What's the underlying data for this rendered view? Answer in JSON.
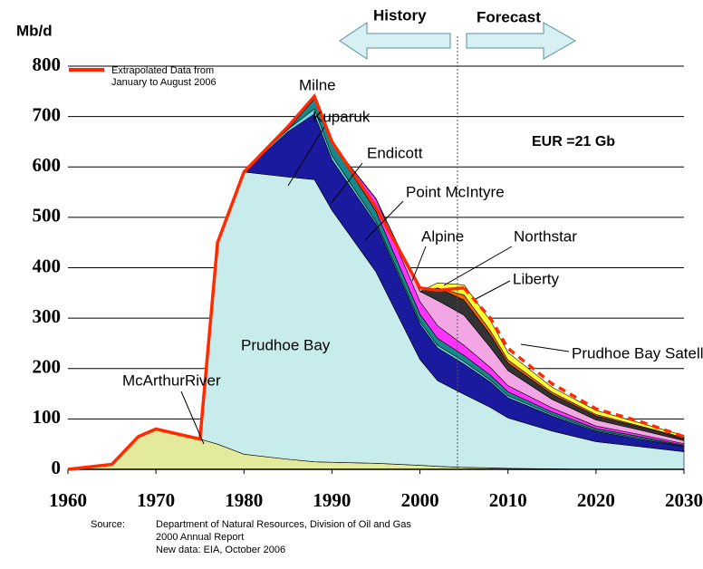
{
  "chart_data": {
    "type": "area",
    "stacked": true,
    "y_unit": "Mb/d",
    "history_label": "History",
    "forecast_label": "Forecast",
    "annotation": "EUR =21 Gb",
    "source": [
      "Source:",
      "Department of Natural Resources, Division of Oil and Gas",
      "2000 Annual Report",
      "New data: EIA, October 2006"
    ],
    "x": [
      1960,
      1965,
      1968,
      1970,
      1975,
      1977,
      1980,
      1985,
      1988,
      1990,
      1995,
      2000,
      2002,
      2005,
      2008,
      2010,
      2015,
      2020,
      2025,
      2030
    ],
    "series": [
      {
        "name": "McArthurRiver",
        "color": "#e3ea9c",
        "values": [
          0,
          10,
          65,
          80,
          60,
          50,
          30,
          20,
          15,
          14,
          12,
          8,
          6,
          4,
          3,
          2,
          1,
          0,
          0,
          0
        ]
      },
      {
        "name": "Prudhoe Bay",
        "color": "#c8ecec",
        "values": [
          0,
          0,
          0,
          0,
          0,
          400,
          560,
          560,
          560,
          500,
          380,
          210,
          170,
          145,
          120,
          100,
          75,
          55,
          45,
          35
        ]
      },
      {
        "name": "Kuparuk",
        "color": "#1a1a9e",
        "values": [
          0,
          0,
          0,
          0,
          0,
          0,
          0,
          90,
          130,
          100,
          95,
          70,
          65,
          60,
          50,
          40,
          30,
          20,
          15,
          10
        ]
      },
      {
        "name": "Milne",
        "color": "#6ad6ea",
        "values": [
          0,
          0,
          0,
          0,
          0,
          0,
          0,
          5,
          10,
          8,
          5,
          5,
          5,
          5,
          4,
          4,
          3,
          2,
          2,
          1
        ]
      },
      {
        "name": "Endicott",
        "color": "#17898a",
        "values": [
          0,
          0,
          0,
          0,
          0,
          0,
          0,
          0,
          20,
          25,
          20,
          15,
          14,
          12,
          10,
          8,
          5,
          4,
          3,
          2
        ]
      },
      {
        "name": "Point McIntyre",
        "color": "#ff33ff",
        "values": [
          0,
          0,
          0,
          0,
          0,
          0,
          0,
          0,
          0,
          0,
          25,
          25,
          25,
          20,
          15,
          12,
          8,
          5,
          4,
          3
        ]
      },
      {
        "name": "Alpine",
        "color": "#f2a6e4",
        "values": [
          0,
          0,
          0,
          0,
          0,
          0,
          0,
          0,
          0,
          0,
          0,
          20,
          50,
          60,
          40,
          30,
          17,
          12,
          9,
          6
        ]
      },
      {
        "name": "Northstar",
        "color": "#333333",
        "values": [
          0,
          0,
          0,
          0,
          0,
          0,
          0,
          0,
          0,
          0,
          0,
          0,
          25,
          30,
          25,
          15,
          10,
          8,
          6,
          4
        ]
      },
      {
        "name": "Liberty",
        "color": "#ff6600",
        "values": [
          0,
          0,
          0,
          0,
          0,
          0,
          0,
          0,
          0,
          0,
          0,
          0,
          0,
          10,
          8,
          6,
          4,
          3,
          2,
          2
        ]
      },
      {
        "name": "Prudhoe Bay Satellite",
        "color": "#ffff33",
        "values": [
          0,
          0,
          0,
          0,
          0,
          0,
          0,
          0,
          0,
          0,
          0,
          0,
          10,
          20,
          20,
          15,
          10,
          8,
          6,
          4
        ]
      }
    ],
    "lines": [
      {
        "name": "Extrapolated Data  from January to August 2006",
        "color": "#ff2a00",
        "values": [
          0,
          10,
          65,
          80,
          60,
          450,
          590,
          680,
          740,
          650,
          520,
          360,
          355,
          360,
          null,
          null,
          null,
          null,
          null,
          null
        ]
      },
      {
        "color": "#ff2a00",
        "dashed": true,
        "values": [
          null,
          null,
          null,
          null,
          null,
          null,
          null,
          null,
          null,
          null,
          null,
          null,
          null,
          360,
          300,
          240,
          170,
          120,
          95,
          65
        ]
      }
    ],
    "xlim": [
      1960,
      2030
    ],
    "xticks": [
      1960,
      1970,
      1980,
      1990,
      2000,
      2010,
      2020,
      2030
    ],
    "ylim": [
      0,
      800
    ],
    "yticks": [
      0,
      100,
      200,
      300,
      400,
      500,
      600,
      700,
      800
    ],
    "grid": true
  }
}
